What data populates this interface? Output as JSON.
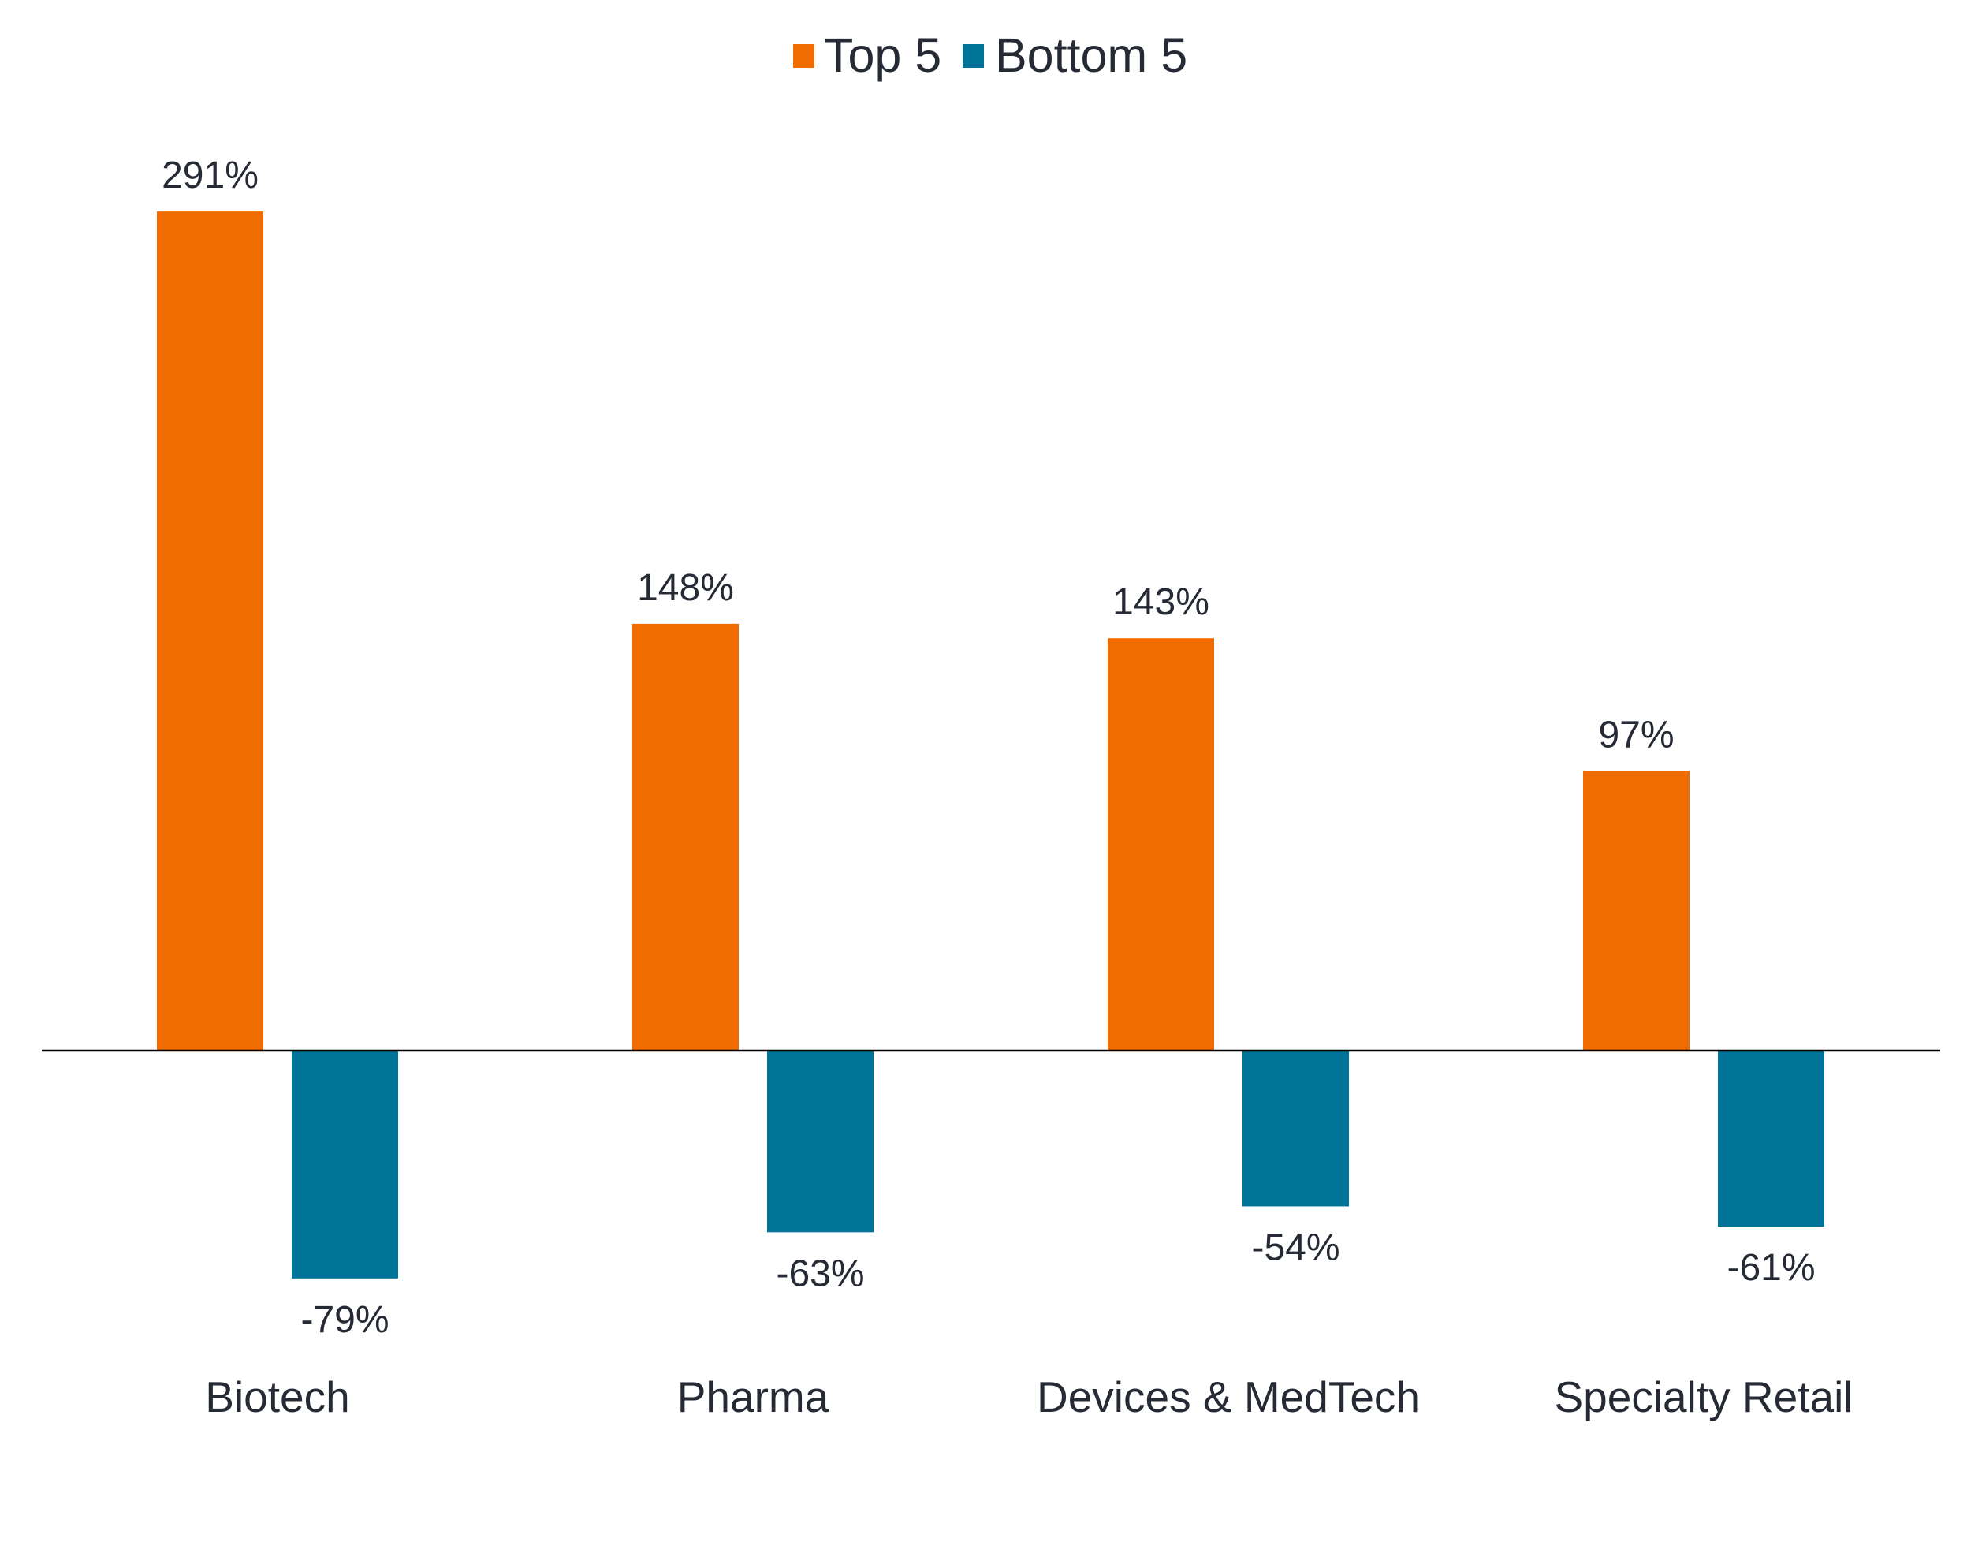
{
  "chart_data": {
    "type": "bar",
    "title": "",
    "xlabel": "",
    "ylabel": "",
    "categories": [
      "Biotech",
      "Pharma",
      "Devices & MedTech",
      "Specialty Retail"
    ],
    "series": [
      {
        "name": "Top 5",
        "color": "#f06c00",
        "values": [
          291,
          148,
          143,
          97
        ],
        "labels": [
          "291%",
          "148%",
          "143%",
          "97%"
        ]
      },
      {
        "name": "Bottom 5",
        "color": "#007398",
        "values": [
          -79,
          -63,
          -54,
          -61
        ],
        "labels": [
          "-79%",
          "-63%",
          "-54%",
          "-61%"
        ]
      }
    ],
    "ylim": [
      -100,
      300
    ],
    "grid": false,
    "legend_position": "top-center",
    "value_unit": "%"
  }
}
